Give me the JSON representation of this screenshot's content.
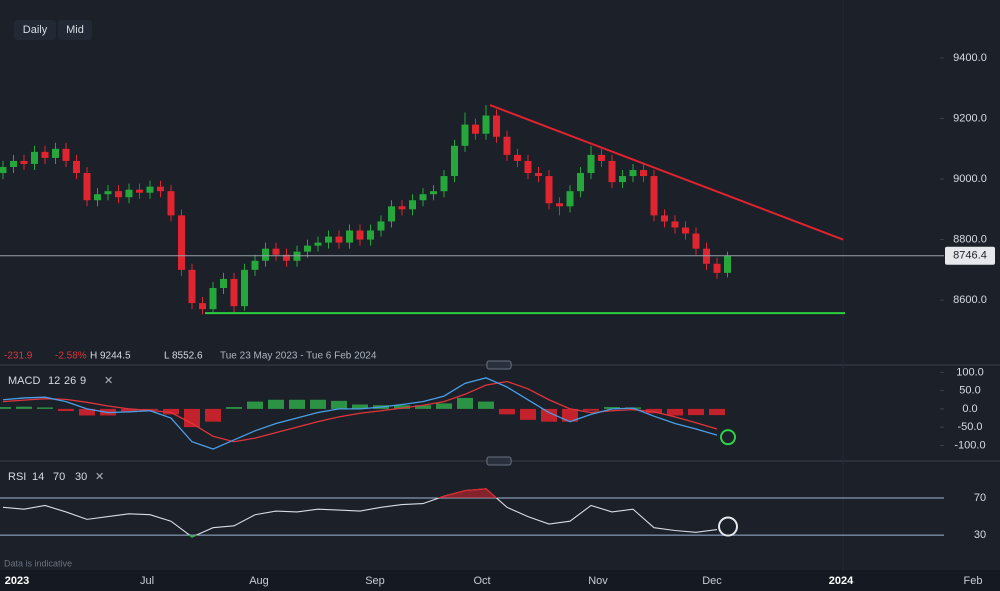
{
  "toolbar": {
    "buttons": [
      "Daily",
      "Mid"
    ]
  },
  "header": {
    "change": "-231.9",
    "change_pct": "-2.58%",
    "high": "H 9244.5",
    "low": "L 8552.6",
    "range": "Tue 23 May 2023 - Tue 6 Feb 2024"
  },
  "footnote": "Data is indicative",
  "x_axis": {
    "labels": [
      "2023",
      "Jul",
      "Aug",
      "Sep",
      "Oct",
      "Nov",
      "Dec",
      "2024",
      "Feb"
    ]
  },
  "chart_data": [
    {
      "type": "candlestick",
      "ylim": [
        8435,
        9592
      ],
      "yticks": [
        {
          "value": 8600,
          "label": "8600.0"
        },
        {
          "value": 8800,
          "label": "8800.0"
        },
        {
          "value": 9000,
          "label": "9000.0"
        },
        {
          "value": 9200,
          "label": "9200.0"
        },
        {
          "value": 9400,
          "label": "9400.0"
        }
      ],
      "colors": {
        "up": "#26a73b",
        "down": "#e02530",
        "resistance": "#e0232e",
        "support": "#2bd13f"
      },
      "last": 8746.4,
      "resistance": [
        9244.5,
        8800
      ],
      "support": 8557,
      "open": [
        9020,
        9040,
        9060,
        9050,
        9090,
        9070,
        9100,
        9060,
        9020,
        8930,
        8950,
        8960,
        8940,
        8965,
        8955,
        8975,
        8960,
        8880,
        8700,
        8590,
        8570,
        8640,
        8670,
        8580,
        8700,
        8730,
        8770,
        8750,
        8730,
        8760,
        8780,
        8790,
        8810,
        8790,
        8830,
        8800,
        8830,
        8860,
        8910,
        8900,
        8930,
        8950,
        8960,
        9010,
        9110,
        9180,
        9150,
        9210,
        9140,
        9080,
        9060,
        9020,
        9010,
        8920,
        8910,
        8960,
        9020,
        9080,
        9060,
        8990,
        9010,
        9030,
        9010,
        8880,
        8860,
        8840,
        8820,
        8770,
        8720,
        8690
      ],
      "high": [
        9060,
        9080,
        9080,
        9110,
        9110,
        9120,
        9120,
        9080,
        9040,
        8970,
        8980,
        8980,
        8985,
        8985,
        8995,
        8995,
        8980,
        8900,
        8720,
        8610,
        8660,
        8690,
        8690,
        8720,
        8750,
        8790,
        8790,
        8770,
        8780,
        8800,
        8810,
        8830,
        8830,
        8850,
        8850,
        8850,
        8880,
        8930,
        8930,
        8950,
        8970,
        8980,
        9030,
        9130,
        9220,
        9200,
        9244.5,
        9230,
        9160,
        9100,
        9080,
        9040,
        9030,
        8940,
        8980,
        9040,
        9110,
        9100,
        9080,
        9030,
        9050,
        9050,
        9030,
        8900,
        8880,
        8860,
        8840,
        8790,
        8740,
        8760
      ],
      "low": [
        9000,
        9020,
        9030,
        9030,
        9050,
        9050,
        9040,
        9000,
        8910,
        8910,
        8930,
        8920,
        8920,
        8935,
        8935,
        8940,
        8860,
        8680,
        8570,
        8552.6,
        8560,
        8620,
        8560,
        8565,
        8680,
        8710,
        8730,
        8710,
        8710,
        8740,
        8760,
        8770,
        8770,
        8770,
        8780,
        8780,
        8810,
        8840,
        8880,
        8880,
        8910,
        8930,
        8940,
        8990,
        9090,
        9130,
        9130,
        9120,
        9060,
        9040,
        9000,
        8990,
        8900,
        8880,
        8890,
        8940,
        9000,
        9040,
        8970,
        8970,
        8990,
        8990,
        8860,
        8840,
        8820,
        8800,
        8750,
        8700,
        8670,
        8675
      ],
      "close": [
        9040,
        9060,
        9050,
        9090,
        9070,
        9100,
        9060,
        9020,
        8930,
        8950,
        8960,
        8940,
        8965,
        8955,
        8975,
        8960,
        8880,
        8700,
        8590,
        8570,
        8640,
        8670,
        8580,
        8700,
        8730,
        8770,
        8750,
        8730,
        8760,
        8780,
        8790,
        8810,
        8790,
        8830,
        8800,
        8830,
        8860,
        8910,
        8900,
        8930,
        8950,
        8960,
        9010,
        9110,
        9180,
        9150,
        9210,
        9140,
        9080,
        9060,
        9020,
        9010,
        8920,
        8910,
        8960,
        9020,
        9080,
        9060,
        8990,
        9010,
        9030,
        9010,
        8880,
        8860,
        8840,
        8820,
        8770,
        8720,
        8690,
        8746.4
      ]
    },
    {
      "type": "macd",
      "title": "MACD",
      "params": [
        12,
        26,
        9
      ],
      "ylim": [
        -140,
        112
      ],
      "yticks": [
        {
          "value": 100,
          "label": "100.0"
        },
        {
          "value": 50,
          "label": "50.0"
        },
        {
          "value": 0,
          "label": "0.0"
        },
        {
          "value": -50,
          "label": "-50.0"
        },
        {
          "value": -100,
          "label": "-100.0"
        }
      ],
      "colors": {
        "macd": "#4a9fe8",
        "signal": "#e0353b",
        "up": "#2fa84a",
        "down": "#e0232e"
      },
      "macd": [
        25,
        30,
        32,
        20,
        0,
        -10,
        -8,
        -5,
        -25,
        -90,
        -110,
        -85,
        -60,
        -40,
        -25,
        -10,
        0,
        0,
        5,
        12,
        20,
        35,
        70,
        85,
        60,
        25,
        -10,
        -35,
        -15,
        0,
        2,
        -20,
        -40,
        -55,
        -72
      ],
      "signal": [
        20,
        24,
        28,
        26,
        18,
        8,
        0,
        -4,
        -10,
        -40,
        -75,
        -90,
        -80,
        -65,
        -50,
        -35,
        -22,
        -12,
        -5,
        2,
        10,
        20,
        40,
        65,
        75,
        55,
        25,
        0,
        -10,
        -5,
        -2,
        -8,
        -22,
        -38,
        -55
      ],
      "histogram": [
        5,
        6,
        4,
        -6,
        -18,
        -18,
        -8,
        -1,
        -15,
        -50,
        -35,
        5,
        20,
        25,
        25,
        25,
        22,
        12,
        10,
        10,
        10,
        15,
        30,
        20,
        -15,
        -30,
        -35,
        -35,
        -5,
        5,
        4,
        -12,
        -18,
        -17,
        -17
      ]
    },
    {
      "type": "rsi",
      "title": "RSI",
      "params": [
        14,
        70,
        30
      ],
      "ylim": [
        1,
        103.5
      ],
      "yticks": [
        30,
        70
      ],
      "colors": {
        "line": "#d9dde3",
        "overbought": "#d9262e",
        "oversold": "#2fb34a",
        "levels": "#9fb6d4"
      },
      "values": [
        60,
        58,
        62,
        55,
        47,
        50,
        53,
        52,
        45,
        28,
        38,
        40,
        52,
        56,
        55,
        58,
        57,
        56,
        60,
        63,
        64,
        72,
        78,
        80,
        60,
        50,
        42,
        45,
        62,
        55,
        58,
        38,
        35,
        33,
        36
      ]
    }
  ]
}
